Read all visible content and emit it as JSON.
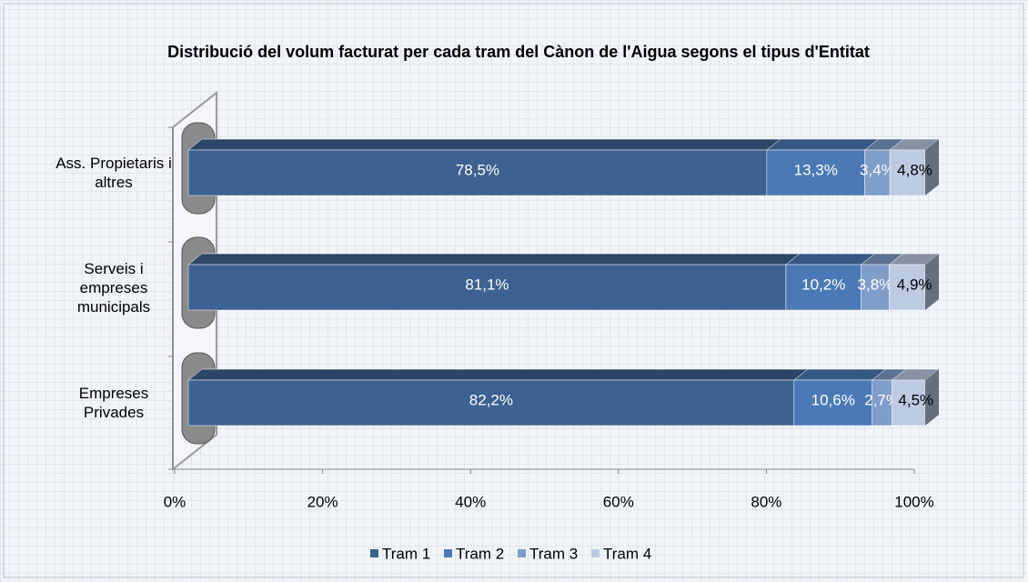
{
  "chart_data": {
    "type": "stacked_bar_3d",
    "title": "Distribució del volum facturat per cada tram del Cànon de l'Aigua segons el tipus d'Entitat",
    "categories": [
      "Ass. Propietaris i altres",
      "Serveis i empreses municipals",
      "Empreses Privades"
    ],
    "series": [
      {
        "name": "Tram 1",
        "color": "#3d6190",
        "values": [
          78.5,
          81.1,
          82.2
        ],
        "value_labels": [
          "78,5%",
          "81,1%",
          "82,2%"
        ]
      },
      {
        "name": "Tram 2",
        "color": "#4b79b6",
        "values": [
          13.3,
          10.2,
          10.6
        ],
        "value_labels": [
          "13,3%",
          "10,2%",
          "10,6%"
        ]
      },
      {
        "name": "Tram 3",
        "color": "#7f9dc9",
        "values": [
          3.4,
          3.8,
          2.7
        ],
        "value_labels": [
          "3,4%",
          "3,8%",
          "2,7%"
        ]
      },
      {
        "name": "Tram 4",
        "color": "#bccae2",
        "values": [
          4.8,
          4.9,
          4.5
        ],
        "value_labels": [
          "4,8%",
          "4,9%",
          "4,5%"
        ]
      }
    ],
    "xlim": [
      0,
      100
    ],
    "xticks": [
      {
        "value": 0,
        "label": "0%"
      },
      {
        "value": 20,
        "label": "20%"
      },
      {
        "value": 40,
        "label": "40%"
      },
      {
        "value": 60,
        "label": "60%"
      },
      {
        "value": 80,
        "label": "80%"
      },
      {
        "value": 100,
        "label": "100%"
      }
    ],
    "legend": "bottom"
  }
}
